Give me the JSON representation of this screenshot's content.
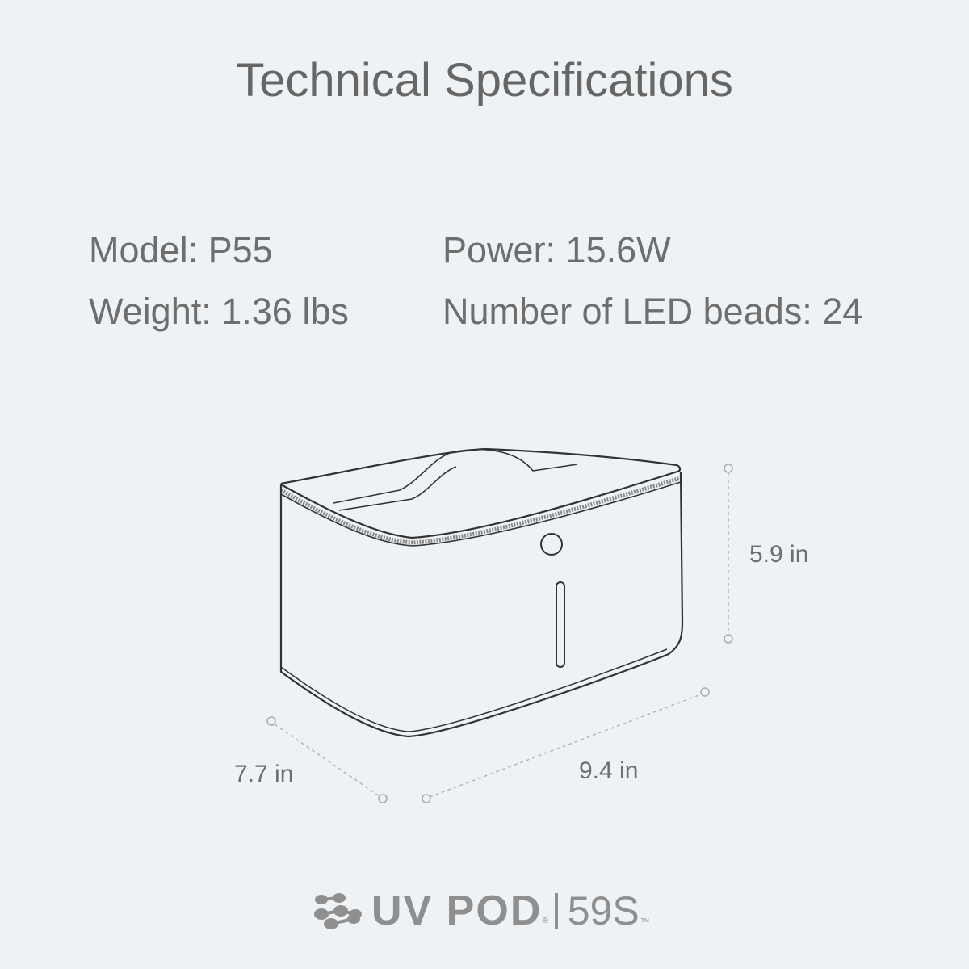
{
  "title": "Technical Specifications",
  "specs": {
    "model": "Model: P55",
    "weight": "Weight: 1.36 lbs",
    "power": "Power: 15.6W",
    "led_beads": "Number of LED beads: 24"
  },
  "dimensions": {
    "height": "5.9 in",
    "depth": "7.7 in",
    "width": "9.4 in"
  },
  "logo": {
    "brand": "UV POD",
    "registered": "®",
    "sub": "59S",
    "trademark": "TM"
  },
  "colors": {
    "background": "#eef2f5",
    "text": "#6b6b6b",
    "logo": "#8f8f8f"
  }
}
